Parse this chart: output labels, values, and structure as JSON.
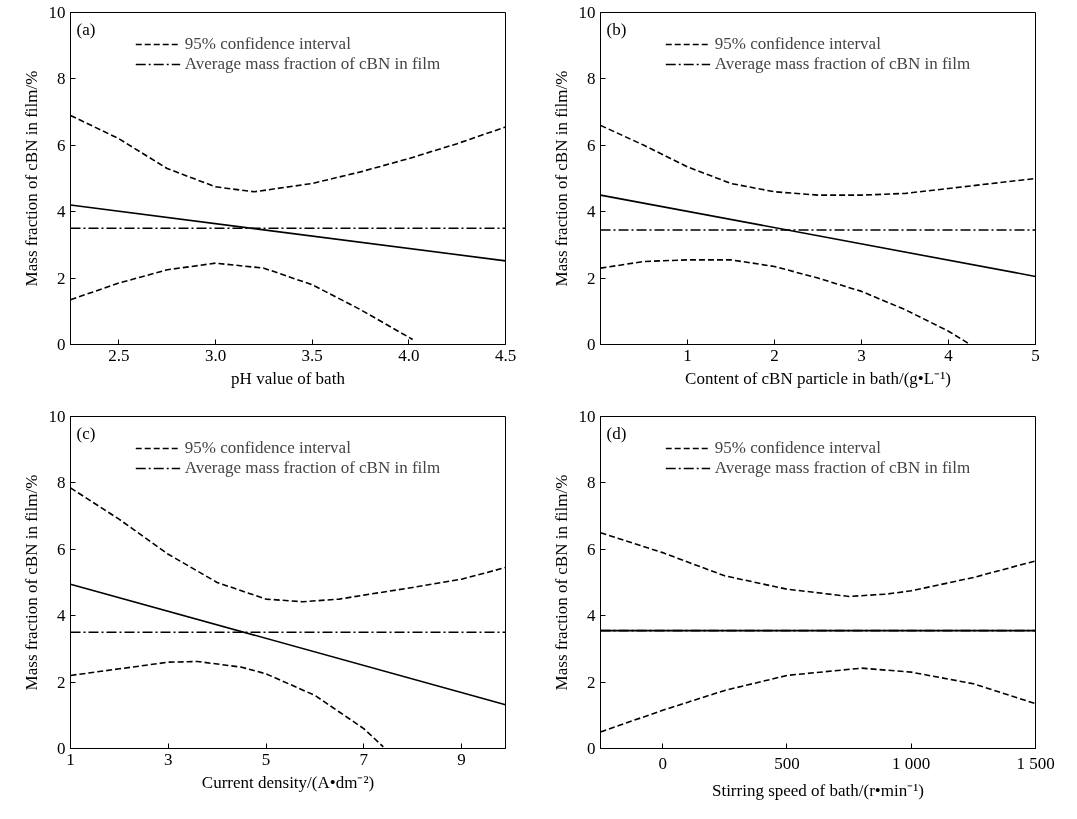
{
  "chart_data": [
    {
      "type": "line",
      "xlabel": "pH value of bath",
      "ylabel": "Mass fraction of cBN in film/%",
      "annotations": [
        "(a)"
      ],
      "xlim": [
        2.25,
        4.5
      ],
      "ylim": [
        0,
        10
      ],
      "xticks": [
        {
          "value": 2.5,
          "label": "2.5"
        },
        {
          "value": 3,
          "label": "3.0"
        },
        {
          "value": 3.5,
          "label": "3.5"
        },
        {
          "value": 4,
          "label": "4.0"
        },
        {
          "value": 4.5,
          "label": "4.5"
        }
      ],
      "yticks": [
        0,
        2,
        4,
        6,
        8,
        10
      ],
      "grid": false,
      "legend": "top",
      "series": [
        {
          "color": "#000000",
          "line_style": "solid",
          "x": [
            2.25,
            4.5
          ],
          "values": [
            4.2,
            2.52
          ]
        },
        {
          "name": "95% confidence interval",
          "color": "#000000",
          "line_style": "dashed",
          "x": [
            2.25,
            2.5,
            2.75,
            3.0,
            3.2,
            3.5,
            3.75,
            4.0,
            4.25,
            4.5
          ],
          "values": [
            6.9,
            6.2,
            5.3,
            4.75,
            4.6,
            4.85,
            5.2,
            5.6,
            6.05,
            6.55
          ]
        },
        {
          "color": "#000000",
          "line_style": "dashed",
          "x": [
            2.25,
            2.5,
            2.75,
            3.0,
            3.25,
            3.5,
            3.75,
            4.02
          ],
          "values": [
            1.35,
            1.85,
            2.25,
            2.45,
            2.3,
            1.8,
            1.05,
            0.15
          ]
        },
        {
          "name": "Average mass fraction of cBN in film",
          "color": "#000000",
          "line_style": "dashdot",
          "x": [
            2.25,
            4.5
          ],
          "values": [
            3.5,
            3.5
          ]
        }
      ]
    },
    {
      "type": "line",
      "xlabel": "Content of cBN particle in bath/(g•L⁻¹)",
      "ylabel": "Mass fraction of cBN in film/%",
      "annotations": [
        "(b)"
      ],
      "xlim": [
        0,
        5
      ],
      "ylim": [
        0,
        10
      ],
      "xticks": [
        1,
        2,
        3,
        4,
        5
      ],
      "yticks": [
        0,
        2,
        4,
        6,
        8,
        10
      ],
      "grid": false,
      "legend": "top",
      "series": [
        {
          "color": "#000000",
          "line_style": "solid",
          "x": [
            0,
            5
          ],
          "values": [
            4.5,
            2.05
          ]
        },
        {
          "name": "95% confidence interval",
          "color": "#000000",
          "line_style": "dashed",
          "x": [
            0,
            0.5,
            1,
            1.5,
            2,
            2.5,
            3,
            3.5,
            4,
            4.5,
            5
          ],
          "values": [
            6.6,
            6.0,
            5.35,
            4.85,
            4.6,
            4.5,
            4.5,
            4.55,
            4.7,
            4.85,
            5.0
          ]
        },
        {
          "color": "#000000",
          "line_style": "dashed",
          "x": [
            0,
            0.5,
            1,
            1.5,
            2,
            2.5,
            3,
            3.5,
            4,
            4.25
          ],
          "values": [
            2.3,
            2.5,
            2.55,
            2.55,
            2.35,
            2.0,
            1.6,
            1.05,
            0.4,
            0.0
          ]
        },
        {
          "name": "Average mass fraction of cBN in film",
          "color": "#000000",
          "line_style": "dashdot",
          "x": [
            0,
            5
          ],
          "values": [
            3.45,
            3.45
          ]
        }
      ]
    },
    {
      "type": "line",
      "xlabel": "Current density/(A•dm⁻²)",
      "ylabel": "Mass fraction of cBN in film/%",
      "annotations": [
        "(c)"
      ],
      "xlim": [
        1,
        9.9
      ],
      "ylim": [
        0,
        10
      ],
      "xticks": [
        1,
        3,
        5,
        7,
        9
      ],
      "yticks": [
        0,
        2,
        4,
        6,
        8,
        10
      ],
      "grid": false,
      "legend": "top",
      "series": [
        {
          "color": "#000000",
          "line_style": "solid",
          "x": [
            1,
            9.9
          ],
          "values": [
            4.95,
            1.32
          ]
        },
        {
          "name": "95% confidence interval",
          "color": "#000000",
          "line_style": "dashed",
          "x": [
            1,
            2,
            3,
            4,
            5,
            5.75,
            6.5,
            7,
            8,
            9,
            9.9
          ],
          "values": [
            7.85,
            6.9,
            5.85,
            5.0,
            4.5,
            4.42,
            4.5,
            4.62,
            4.85,
            5.1,
            5.45
          ]
        },
        {
          "color": "#000000",
          "line_style": "dashed",
          "x": [
            1,
            2,
            3,
            3.6,
            4.5,
            5,
            6,
            6.5,
            7,
            7.4
          ],
          "values": [
            2.2,
            2.4,
            2.6,
            2.62,
            2.45,
            2.25,
            1.6,
            1.1,
            0.6,
            0.05
          ]
        },
        {
          "name": "Average mass fraction of cBN in film",
          "color": "#000000",
          "line_style": "dashdot",
          "x": [
            1,
            9.9
          ],
          "values": [
            3.5,
            3.5
          ]
        }
      ]
    },
    {
      "type": "line",
      "xlabel": "Stirring speed of bath/(r•min⁻¹)",
      "ylabel": "Mass fraction of cBN in film/%",
      "annotations": [
        "(d)"
      ],
      "xlim": [
        -250,
        1500
      ],
      "ylim": [
        0,
        10
      ],
      "xticks": [
        0,
        500,
        {
          "value": 1000,
          "label": "1 000"
        },
        {
          "value": 1500,
          "label": "1 500"
        }
      ],
      "yticks": [
        0,
        2,
        4,
        6,
        8,
        10
      ],
      "grid": false,
      "legend": "top",
      "series": [
        {
          "color": "#000000",
          "line_style": "solid",
          "x": [
            -250,
            1500
          ],
          "values": [
            3.55,
            3.55
          ]
        },
        {
          "name": "95% confidence interval",
          "color": "#000000",
          "line_style": "dashed",
          "x": [
            -250,
            0,
            250,
            500,
            750,
            900,
            1000,
            1250,
            1500
          ],
          "values": [
            6.5,
            5.9,
            5.2,
            4.8,
            4.58,
            4.65,
            4.75,
            5.15,
            5.65
          ]
        },
        {
          "color": "#000000",
          "line_style": "dashed",
          "x": [
            -250,
            0,
            250,
            500,
            800,
            1000,
            1250,
            1500
          ],
          "values": [
            0.5,
            1.15,
            1.75,
            2.2,
            2.42,
            2.3,
            1.95,
            1.35
          ]
        },
        {
          "name": "Average mass fraction of cBN in film",
          "color": "#000000",
          "line_style": "dashdot",
          "x": [
            -250,
            1500
          ],
          "values": [
            3.55,
            3.55
          ]
        }
      ]
    }
  ]
}
